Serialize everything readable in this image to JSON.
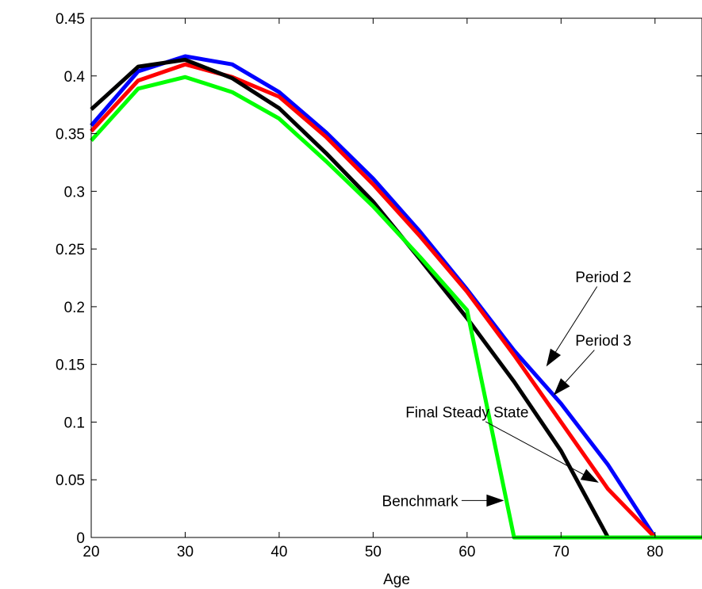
{
  "chart_data": {
    "type": "line",
    "title": "",
    "xlabel": "Age",
    "ylabel": "",
    "xlim": [
      20,
      85
    ],
    "ylim": [
      0,
      0.45
    ],
    "xticks": [
      20,
      30,
      40,
      50,
      60,
      70,
      80
    ],
    "yticks": [
      0,
      0.05,
      0.1,
      0.15,
      0.2,
      0.25,
      0.3,
      0.35,
      0.4,
      0.45
    ],
    "xtick_labels": [
      "20",
      "30",
      "40",
      "50",
      "60",
      "70",
      "80"
    ],
    "ytick_labels": [
      "0",
      "0.05",
      "0.1",
      "0.15",
      "0.2",
      "0.25",
      "0.3",
      "0.35",
      "0.4",
      "0.45"
    ],
    "grid": false,
    "series": [
      {
        "name": "Period 2",
        "color": "#0000ff",
        "points": [
          [
            20,
            0.357
          ],
          [
            25,
            0.404
          ],
          [
            30,
            0.417
          ],
          [
            35,
            0.41
          ],
          [
            40,
            0.386
          ],
          [
            45,
            0.351
          ],
          [
            50,
            0.311
          ],
          [
            55,
            0.265
          ],
          [
            60,
            0.215
          ],
          [
            65,
            0.162
          ],
          [
            70,
            0.116
          ],
          [
            75,
            0.063
          ],
          [
            80,
            0.0
          ],
          [
            85,
            0.0
          ]
        ]
      },
      {
        "name": "Period 3",
        "color": "#ff0000",
        "points": [
          [
            20,
            0.352
          ],
          [
            25,
            0.396
          ],
          [
            30,
            0.41
          ],
          [
            35,
            0.399
          ],
          [
            40,
            0.382
          ],
          [
            45,
            0.347
          ],
          [
            50,
            0.306
          ],
          [
            55,
            0.261
          ],
          [
            60,
            0.213
          ],
          [
            65,
            0.158
          ],
          [
            70,
            0.1
          ],
          [
            75,
            0.042
          ],
          [
            80,
            0.0
          ],
          [
            85,
            0.0
          ]
        ]
      },
      {
        "name": "Final Steady State",
        "color": "#000000",
        "points": [
          [
            20,
            0.371
          ],
          [
            25,
            0.408
          ],
          [
            30,
            0.414
          ],
          [
            35,
            0.398
          ],
          [
            40,
            0.372
          ],
          [
            45,
            0.333
          ],
          [
            50,
            0.291
          ],
          [
            55,
            0.241
          ],
          [
            60,
            0.19
          ],
          [
            65,
            0.135
          ],
          [
            70,
            0.075
          ],
          [
            75,
            0.0
          ],
          [
            80,
            0.0
          ],
          [
            85,
            0.0
          ]
        ]
      },
      {
        "name": "Benchmark",
        "color": "#00ff00",
        "points": [
          [
            20,
            0.344
          ],
          [
            25,
            0.389
          ],
          [
            30,
            0.399
          ],
          [
            35,
            0.386
          ],
          [
            40,
            0.363
          ],
          [
            45,
            0.326
          ],
          [
            50,
            0.287
          ],
          [
            55,
            0.243
          ],
          [
            60,
            0.197
          ],
          [
            65,
            0.0
          ],
          [
            70,
            0.0
          ],
          [
            75,
            0.0
          ],
          [
            80,
            0.0
          ],
          [
            85,
            0.0
          ]
        ]
      }
    ],
    "annotations": [
      {
        "text": "Period 2",
        "text_at": [
          74.5,
          0.226
        ],
        "arrow_to": [
          68.5,
          0.149
        ]
      },
      {
        "text": "Period 3",
        "text_at": [
          74.5,
          0.171
        ],
        "arrow_to": [
          69.3,
          0.124
        ]
      },
      {
        "text": "Final Steady State",
        "text_at": [
          60,
          0.109
        ],
        "arrow_to": [
          73.9,
          0.048
        ]
      },
      {
        "text": "Benchmark",
        "text_at": [
          55,
          0.032
        ],
        "arrow_to": [
          63.8,
          0.032
        ]
      }
    ]
  }
}
